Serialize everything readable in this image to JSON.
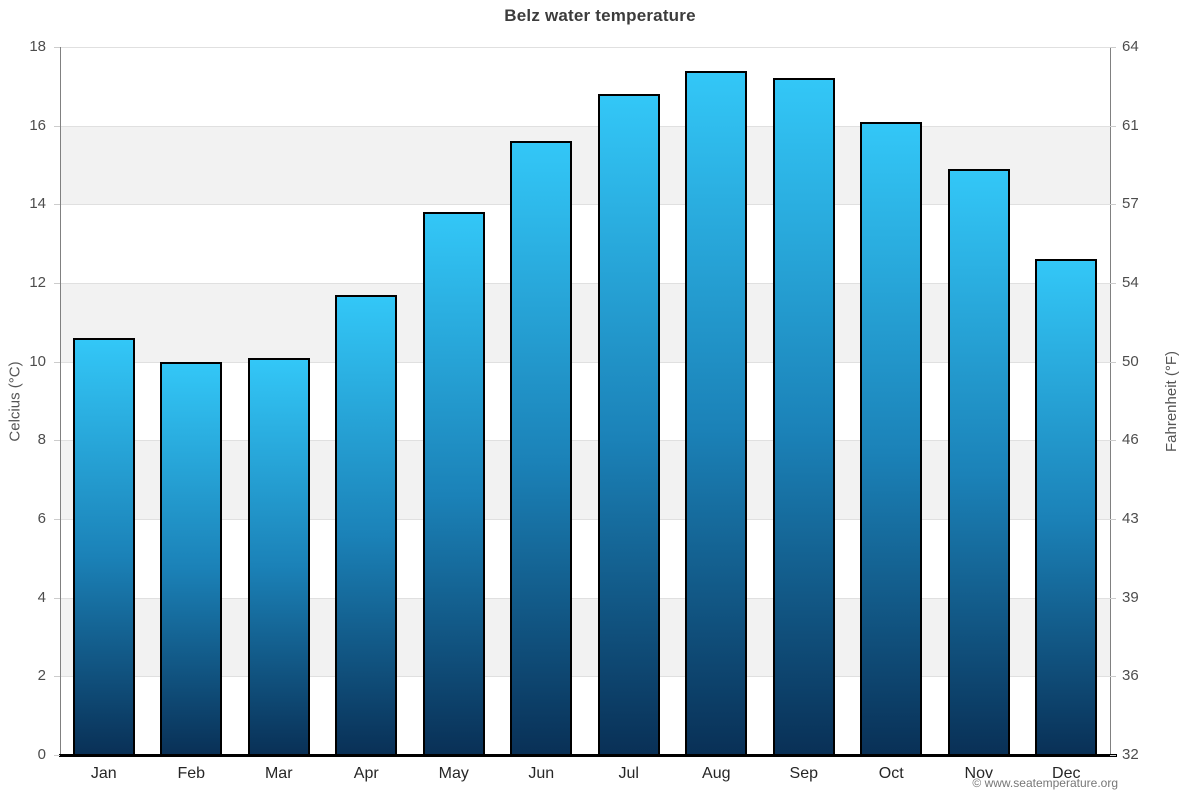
{
  "header": {
    "title": "Belz water temperature"
  },
  "axes": {
    "left_title": "Celcius (°C)",
    "right_title": "Fahrenheit (°F)",
    "left_ticks": [
      0,
      2,
      4,
      6,
      8,
      10,
      12,
      14,
      16,
      18
    ],
    "right_ticks": [
      32,
      36,
      39,
      43,
      46,
      50,
      54,
      57,
      61,
      64
    ]
  },
  "chart_data": {
    "type": "bar",
    "title": "Belz water temperature",
    "categories": [
      "Jan",
      "Feb",
      "Mar",
      "Apr",
      "May",
      "Jun",
      "Jul",
      "Aug",
      "Sep",
      "Oct",
      "Nov",
      "Dec"
    ],
    "values": [
      10.6,
      10.0,
      10.1,
      11.7,
      13.8,
      15.6,
      16.8,
      17.4,
      17.2,
      16.1,
      14.9,
      12.6
    ],
    "xlabel": "",
    "ylabel": "Celcius (°C)",
    "ylabel_right": "Fahrenheit (°F)",
    "ylim": [
      0,
      18
    ],
    "y2lim": [
      32,
      64
    ],
    "yticks": [
      0,
      2,
      4,
      6,
      8,
      10,
      12,
      14,
      16,
      18
    ],
    "y2ticks": [
      32,
      36,
      39,
      43,
      46,
      50,
      54,
      57,
      61,
      64
    ],
    "grid": "horizontal stripes every 2 units, gridlines at ticks",
    "legend_position": "none"
  },
  "colors": {
    "bar_gradient_top": "#33c7f7",
    "bar_gradient_mid": "#1b82b8",
    "bar_gradient_bottom": "#093056",
    "bar_border": "#000000",
    "band_white": "#ffffff",
    "band_gray": "#f2f2f2",
    "gridline": "#e0e0e0",
    "tick_mark": "#cccccc",
    "axis_vertical": "#808080",
    "baseline": "#000000"
  },
  "footer": {
    "watermark": "© www.seatemperature.org"
  }
}
